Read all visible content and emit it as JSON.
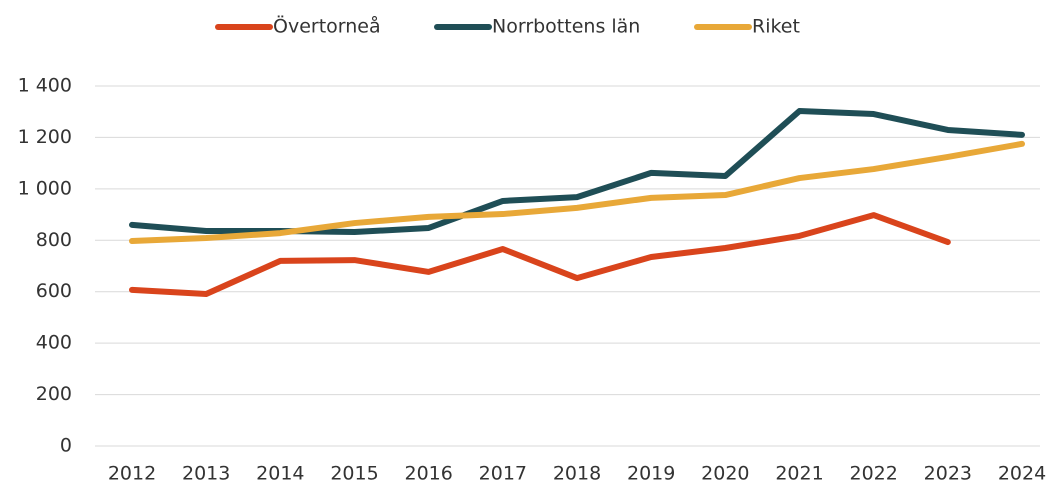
{
  "chart_data": {
    "type": "line",
    "categories": [
      "2012",
      "2013",
      "2014",
      "2015",
      "2016",
      "2017",
      "2018",
      "2019",
      "2020",
      "2021",
      "2022",
      "2023",
      "2024"
    ],
    "series": [
      {
        "name": "Övertorneå",
        "color": "#d9441c",
        "values": [
          607,
          591,
          720,
          723,
          677,
          766,
          653,
          735,
          770,
          817,
          898,
          793,
          null
        ]
      },
      {
        "name": "Norrbottens län",
        "color": "#1f4e56",
        "values": [
          860,
          836,
          836,
          832,
          848,
          953,
          968,
          1062,
          1050,
          1303,
          1291,
          1229,
          1210
        ]
      },
      {
        "name": "Riket",
        "color": "#e8a838",
        "values": [
          797,
          809,
          828,
          867,
          891,
          902,
          926,
          965,
          976,
          1042,
          1077,
          1124,
          1175
        ]
      }
    ],
    "ylim": [
      0,
      1400
    ],
    "yticks": [
      0,
      200,
      400,
      600,
      800,
      {
        "value": 1000,
        "label": "1 000"
      },
      {
        "value": 1200,
        "label": "1 200"
      },
      {
        "value": 1400,
        "label": "1 400"
      }
    ],
    "grid": true,
    "legend": "top"
  }
}
